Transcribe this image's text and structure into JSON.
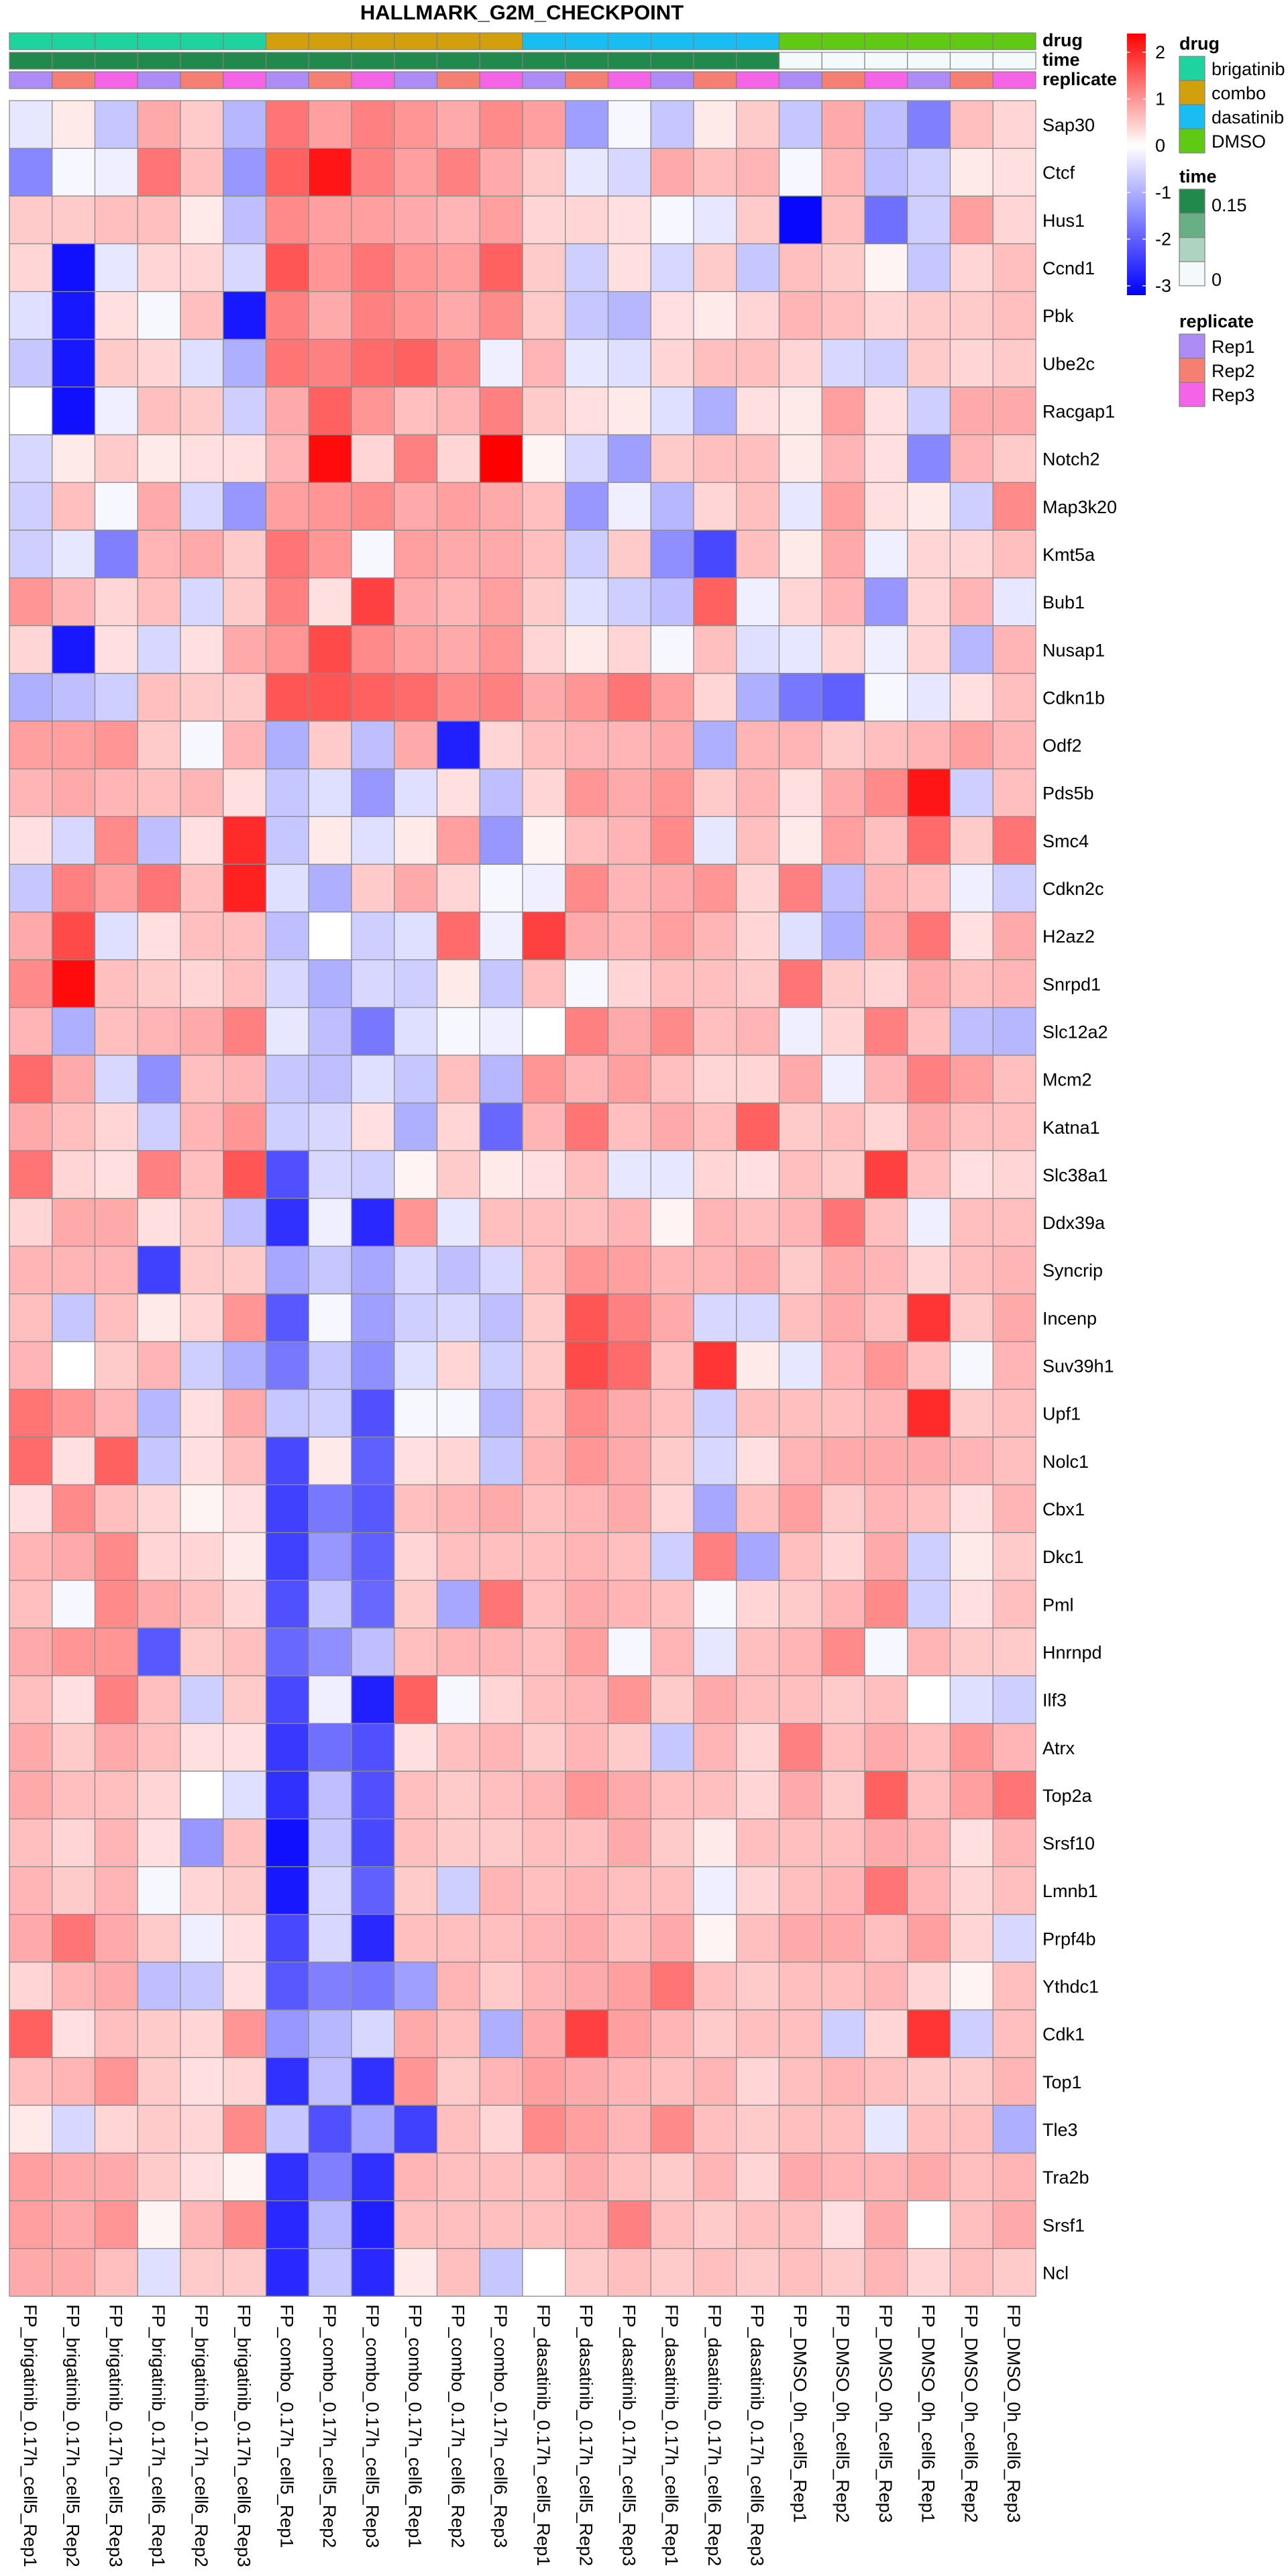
{
  "chart_data": {
    "type": "heatmap",
    "title": "HALLMARK_G2M_CHECKPOINT",
    "columns": [
      "FP_brigatinib_0.17h_cell5_Rep1",
      "FP_brigatinib_0.17h_cell5_Rep2",
      "FP_brigatinib_0.17h_cell5_Rep3",
      "FP_brigatinib_0.17h_cell6_Rep1",
      "FP_brigatinib_0.17h_cell6_Rep2",
      "FP_brigatinib_0.17h_cell6_Rep3",
      "FP_combo_0.17h_cell5_Rep1",
      "FP_combo_0.17h_cell5_Rep2",
      "FP_combo_0.17h_cell5_Rep3",
      "FP_combo_0.17h_cell6_Rep1",
      "FP_combo_0.17h_cell6_Rep2",
      "FP_combo_0.17h_cell6_Rep3",
      "FP_dasatinib_0.17h_cell5_Rep1",
      "FP_dasatinib_0.17h_cell5_Rep2",
      "FP_dasatinib_0.17h_cell5_Rep3",
      "FP_dasatinib_0.17h_cell6_Rep1",
      "FP_dasatinib_0.17h_cell6_Rep2",
      "FP_dasatinib_0.17h_cell6_Rep3",
      "FP_DMSO_0h_cell5_Rep1",
      "FP_DMSO_0h_cell5_Rep2",
      "FP_DMSO_0h_cell5_Rep3",
      "FP_DMSO_0h_cell6_Rep1",
      "FP_DMSO_0h_cell6_Rep2",
      "FP_DMSO_0h_cell6_Rep3"
    ],
    "rows": [
      "Sap30",
      "Ctcf",
      "Hus1",
      "Ccnd1",
      "Pbk",
      "Ube2c",
      "Racgap1",
      "Notch2",
      "Map3k20",
      "Kmt5a",
      "Bub1",
      "Nusap1",
      "Cdkn1b",
      "Odf2",
      "Pds5b",
      "Smc4",
      "Cdkn2c",
      "H2az2",
      "Snrpd1",
      "Slc12a2",
      "Mcm2",
      "Katna1",
      "Slc38a1",
      "Ddx39a",
      "Syncrip",
      "Incenp",
      "Suv39h1",
      "Upf1",
      "Nolc1",
      "Cbx1",
      "Dkc1",
      "Pml",
      "Hnrnpd",
      "Ilf3",
      "Atrx",
      "Top2a",
      "Srsf10",
      "Lmnb1",
      "Prpf4b",
      "Ythdc1",
      "Cdk1",
      "Top1",
      "Tle3",
      "Tra2b",
      "Srsf1",
      "Ncl"
    ],
    "values": [
      [
        -0.3,
        0.2,
        -0.7,
        0.8,
        0.5,
        -0.9,
        1.3,
        0.9,
        1.2,
        1.0,
        0.8,
        1.1,
        0.9,
        -1.2,
        -0.1,
        -0.7,
        0.2,
        0.5,
        -0.7,
        0.8,
        -0.8,
        -1.6,
        0.6,
        0.4
      ],
      [
        -1.5,
        -0.1,
        -0.2,
        1.3,
        0.6,
        -1.3,
        1.5,
        2.2,
        1.2,
        0.9,
        1.2,
        0.8,
        0.5,
        -0.3,
        -0.5,
        0.8,
        0.6,
        0.7,
        -0.1,
        0.7,
        -0.8,
        -0.6,
        0.2,
        0.3
      ],
      [
        0.5,
        0.5,
        0.6,
        0.6,
        0.2,
        -0.8,
        1.1,
        0.9,
        0.9,
        0.8,
        0.7,
        0.9,
        0.4,
        0.4,
        0.3,
        -0.1,
        -0.3,
        0.5,
        -3.1,
        0.6,
        -1.8,
        -0.6,
        0.9,
        0.4
      ],
      [
        0.4,
        -3.0,
        -0.3,
        0.4,
        0.4,
        -0.5,
        1.6,
        1.0,
        1.3,
        1.0,
        0.9,
        1.5,
        0.5,
        -0.6,
        0.3,
        -0.5,
        0.5,
        -0.7,
        0.6,
        0.5,
        0.1,
        -0.7,
        0.4,
        0.6
      ],
      [
        -0.4,
        -2.9,
        0.3,
        -0.1,
        0.6,
        -2.9,
        1.2,
        0.8,
        1.2,
        1.0,
        0.8,
        1.1,
        0.5,
        -0.7,
        -0.9,
        0.3,
        0.2,
        0.4,
        0.7,
        0.6,
        0.4,
        0.5,
        0.5,
        0.6
      ],
      [
        -0.7,
        -2.9,
        0.5,
        0.4,
        -0.4,
        -1.0,
        1.3,
        1.2,
        1.4,
        1.5,
        1.1,
        -0.2,
        0.7,
        -0.3,
        -0.4,
        0.4,
        0.6,
        0.6,
        0.4,
        -0.5,
        -0.6,
        0.5,
        0.4,
        0.5
      ],
      [
        0.0,
        -3.0,
        -0.2,
        0.6,
        0.5,
        -0.6,
        0.8,
        1.5,
        1.0,
        0.6,
        0.7,
        1.2,
        0.5,
        0.3,
        0.2,
        -0.4,
        -1.0,
        0.3,
        0.2,
        0.9,
        0.3,
        -0.6,
        0.8,
        0.8
      ],
      [
        -0.5,
        0.2,
        0.5,
        0.2,
        0.3,
        0.3,
        0.7,
        2.3,
        0.4,
        1.2,
        0.4,
        2.4,
        0.1,
        -0.5,
        -1.2,
        0.5,
        0.6,
        0.6,
        0.2,
        0.7,
        0.3,
        -1.5,
        0.7,
        0.5
      ],
      [
        -0.6,
        0.6,
        -0.1,
        0.8,
        -0.5,
        -1.3,
        0.9,
        1.0,
        1.1,
        0.8,
        0.9,
        0.8,
        0.6,
        -1.3,
        -0.2,
        -0.9,
        0.4,
        0.6,
        -0.3,
        0.9,
        0.3,
        0.2,
        -0.6,
        1.1
      ],
      [
        -0.6,
        -0.3,
        -1.6,
        0.7,
        0.8,
        0.5,
        1.3,
        1.0,
        -0.1,
        0.9,
        0.8,
        0.8,
        0.6,
        -0.6,
        0.5,
        -1.4,
        -2.3,
        0.6,
        0.2,
        0.8,
        -0.2,
        0.4,
        0.4,
        0.6
      ],
      [
        1.0,
        0.7,
        0.4,
        0.6,
        -0.5,
        0.5,
        1.2,
        0.3,
        1.8,
        0.8,
        0.7,
        0.9,
        0.5,
        -0.4,
        -0.6,
        -0.8,
        1.5,
        -0.2,
        0.4,
        0.7,
        -1.3,
        0.4,
        0.7,
        -0.3
      ],
      [
        0.4,
        -2.9,
        0.3,
        -0.5,
        0.3,
        0.8,
        1.0,
        1.7,
        1.1,
        0.9,
        0.8,
        1.0,
        0.4,
        0.2,
        0.4,
        -0.1,
        0.6,
        -0.4,
        -0.3,
        0.4,
        -0.2,
        0.4,
        -0.9,
        0.7
      ],
      [
        -1.0,
        -0.8,
        -0.6,
        0.6,
        0.5,
        0.5,
        1.6,
        1.6,
        1.5,
        1.4,
        1.1,
        1.2,
        0.8,
        1.0,
        1.3,
        0.9,
        0.4,
        -1.0,
        -1.7,
        -2.0,
        -0.1,
        -0.3,
        0.3,
        0.6
      ],
      [
        0.9,
        0.9,
        1.0,
        0.5,
        -0.1,
        0.7,
        -1.0,
        0.5,
        -0.8,
        0.8,
        -2.8,
        0.4,
        0.6,
        0.7,
        0.7,
        0.8,
        -1.0,
        0.7,
        0.7,
        0.5,
        0.6,
        0.7,
        0.9,
        0.7
      ],
      [
        0.7,
        0.8,
        0.7,
        0.6,
        0.7,
        0.3,
        -0.7,
        -0.4,
        -1.3,
        -0.4,
        0.3,
        -0.8,
        0.4,
        1.0,
        0.8,
        1.0,
        0.5,
        0.7,
        0.3,
        0.8,
        1.1,
        2.2,
        -0.6,
        0.6
      ],
      [
        0.3,
        -0.5,
        1.1,
        -0.8,
        0.3,
        2.0,
        -0.7,
        0.2,
        -0.4,
        0.2,
        0.9,
        -1.3,
        0.1,
        0.6,
        0.7,
        1.1,
        -0.3,
        0.6,
        0.2,
        0.9,
        0.6,
        1.4,
        0.5,
        1.3
      ],
      [
        -0.7,
        1.2,
        0.9,
        1.3,
        0.6,
        2.1,
        -0.4,
        -1.0,
        0.5,
        0.8,
        0.4,
        -0.1,
        -0.2,
        1.1,
        0.7,
        0.8,
        1.0,
        0.4,
        1.2,
        -0.8,
        0.7,
        0.6,
        -0.2,
        -0.6
      ],
      [
        0.8,
        1.7,
        -0.4,
        0.3,
        0.6,
        0.6,
        -0.8,
        0.0,
        -0.6,
        -0.4,
        1.4,
        -0.2,
        1.8,
        0.8,
        0.7,
        0.9,
        0.7,
        0.4,
        -0.4,
        -1.0,
        0.8,
        1.3,
        0.3,
        0.8
      ],
      [
        1.1,
        2.3,
        0.6,
        0.5,
        0.4,
        0.6,
        -0.5,
        -1.0,
        -0.5,
        -0.6,
        0.2,
        -0.7,
        0.6,
        -0.1,
        0.4,
        0.6,
        0.6,
        0.5,
        1.3,
        0.5,
        0.4,
        0.8,
        0.6,
        0.7
      ],
      [
        0.7,
        -1.0,
        0.6,
        0.7,
        0.8,
        1.2,
        -0.3,
        -0.8,
        -1.7,
        -0.4,
        -0.1,
        -0.2,
        0.0,
        1.2,
        0.8,
        1.1,
        0.6,
        0.7,
        -0.2,
        0.4,
        1.2,
        0.6,
        -0.8,
        -0.9
      ],
      [
        1.4,
        0.8,
        -0.5,
        -1.4,
        0.6,
        0.7,
        -0.7,
        -0.8,
        -0.4,
        -0.7,
        0.6,
        -0.9,
        1.0,
        0.7,
        0.9,
        0.6,
        0.4,
        0.4,
        0.8,
        -0.2,
        0.7,
        1.2,
        0.9,
        0.6
      ],
      [
        0.8,
        0.6,
        0.4,
        -0.6,
        0.7,
        1.0,
        -0.6,
        -0.5,
        0.3,
        -1.0,
        0.4,
        -1.9,
        0.7,
        1.3,
        0.6,
        0.8,
        0.6,
        1.5,
        0.5,
        0.6,
        0.4,
        0.8,
        0.6,
        0.6
      ],
      [
        1.3,
        0.4,
        0.3,
        1.2,
        0.6,
        1.6,
        -2.2,
        -0.5,
        -0.6,
        0.1,
        0.5,
        0.2,
        0.3,
        0.6,
        -0.3,
        -0.3,
        0.4,
        0.3,
        0.6,
        0.5,
        1.8,
        0.6,
        0.3,
        0.4
      ],
      [
        0.4,
        0.8,
        0.8,
        0.3,
        0.5,
        -0.8,
        -2.6,
        -0.2,
        -2.7,
        1.0,
        -0.3,
        0.6,
        0.6,
        0.6,
        0.7,
        0.1,
        0.7,
        0.6,
        0.7,
        1.3,
        0.6,
        -0.2,
        0.6,
        0.6
      ],
      [
        0.7,
        0.7,
        0.7,
        -2.4,
        0.5,
        0.5,
        -1.1,
        -0.7,
        -1.1,
        -0.5,
        -0.8,
        -0.5,
        0.6,
        1.0,
        0.9,
        0.7,
        0.7,
        0.8,
        0.5,
        0.8,
        0.7,
        0.4,
        0.6,
        0.7
      ],
      [
        0.6,
        -0.7,
        0.6,
        0.2,
        0.4,
        1.0,
        -2.1,
        -0.1,
        -1.2,
        -0.6,
        -0.5,
        -0.8,
        0.5,
        1.6,
        1.2,
        0.8,
        -0.5,
        -0.5,
        0.6,
        0.8,
        0.6,
        1.9,
        0.5,
        0.8
      ],
      [
        0.7,
        0.0,
        0.5,
        0.7,
        -0.6,
        -1.0,
        -1.7,
        -0.7,
        -1.4,
        -0.4,
        0.4,
        -0.6,
        0.5,
        1.7,
        1.4,
        0.6,
        1.9,
        0.2,
        -0.3,
        0.7,
        1.0,
        0.6,
        -0.1,
        0.7
      ],
      [
        1.3,
        1.0,
        0.7,
        -0.9,
        0.3,
        0.8,
        -0.7,
        -0.6,
        -2.2,
        -0.1,
        -0.1,
        -0.9,
        0.6,
        1.1,
        0.8,
        0.6,
        -0.6,
        0.6,
        0.6,
        0.6,
        0.7,
        2.0,
        0.5,
        0.6
      ],
      [
        1.4,
        0.3,
        1.5,
        -0.7,
        0.3,
        0.6,
        -2.3,
        0.2,
        -2.0,
        0.3,
        0.4,
        -0.7,
        0.7,
        1.0,
        0.8,
        0.5,
        -0.5,
        0.3,
        0.7,
        0.8,
        0.8,
        0.8,
        0.7,
        0.6
      ],
      [
        0.3,
        1.1,
        0.6,
        0.4,
        0.1,
        0.3,
        -2.4,
        -1.7,
        -2.1,
        0.6,
        0.7,
        0.8,
        0.6,
        0.7,
        0.8,
        0.4,
        -1.1,
        0.6,
        0.9,
        0.5,
        0.7,
        0.6,
        0.3,
        0.7
      ],
      [
        0.7,
        0.8,
        1.1,
        0.4,
        0.4,
        0.2,
        -2.4,
        -1.3,
        -2.0,
        0.4,
        0.6,
        0.6,
        0.6,
        0.7,
        0.6,
        -0.6,
        1.2,
        -1.1,
        0.6,
        0.4,
        0.8,
        -0.6,
        0.2,
        0.5
      ],
      [
        0.6,
        -0.1,
        1.1,
        0.8,
        0.6,
        0.4,
        -2.2,
        -0.7,
        -1.9,
        0.5,
        -1.1,
        1.3,
        0.6,
        0.8,
        0.7,
        0.6,
        -0.1,
        0.4,
        0.5,
        0.7,
        1.1,
        -0.6,
        0.3,
        0.6
      ],
      [
        0.8,
        1.0,
        1.0,
        -2.1,
        0.5,
        0.6,
        -1.9,
        -1.4,
        -0.8,
        0.6,
        0.7,
        0.7,
        0.6,
        0.9,
        -0.1,
        0.7,
        -0.3,
        0.6,
        0.7,
        1.1,
        -0.1,
        0.7,
        0.5,
        0.5
      ],
      [
        0.6,
        0.3,
        1.2,
        0.6,
        -0.6,
        0.5,
        -2.3,
        -0.2,
        -2.8,
        1.5,
        -0.1,
        0.4,
        0.6,
        0.7,
        1.0,
        0.5,
        0.8,
        0.6,
        0.6,
        0.5,
        0.6,
        0.0,
        -0.4,
        -0.6
      ],
      [
        0.8,
        0.5,
        0.8,
        0.6,
        0.3,
        0.3,
        -2.5,
        -1.8,
        -2.2,
        0.3,
        0.6,
        0.7,
        0.5,
        0.7,
        0.5,
        -0.7,
        0.7,
        0.4,
        1.2,
        0.6,
        0.8,
        0.6,
        1.0,
        0.7
      ],
      [
        0.8,
        0.6,
        0.6,
        0.4,
        0.0,
        -0.4,
        -2.6,
        -0.8,
        -2.2,
        0.6,
        0.5,
        0.6,
        0.7,
        1.0,
        0.8,
        0.6,
        0.6,
        0.4,
        0.8,
        0.5,
        1.5,
        0.6,
        0.9,
        1.3
      ],
      [
        0.6,
        0.4,
        0.7,
        0.3,
        -1.3,
        0.6,
        -3.0,
        -0.7,
        -2.3,
        0.6,
        0.5,
        0.5,
        0.6,
        0.6,
        0.8,
        0.5,
        0.2,
        0.6,
        0.6,
        0.6,
        0.8,
        0.7,
        0.3,
        0.7
      ],
      [
        0.7,
        0.5,
        0.7,
        -0.1,
        0.4,
        0.5,
        -2.9,
        -0.5,
        -2.0,
        0.5,
        -0.6,
        0.7,
        0.6,
        0.7,
        0.6,
        0.6,
        -0.2,
        0.4,
        0.6,
        0.7,
        1.3,
        0.7,
        0.4,
        0.6
      ],
      [
        0.8,
        1.3,
        0.8,
        0.5,
        -0.2,
        0.3,
        -2.3,
        -0.5,
        -2.7,
        0.6,
        0.6,
        0.6,
        0.7,
        0.8,
        0.6,
        0.8,
        0.1,
        0.6,
        0.8,
        0.8,
        0.6,
        0.9,
        0.4,
        -0.5
      ],
      [
        0.4,
        0.7,
        0.8,
        -0.8,
        -0.7,
        0.3,
        -2.1,
        -1.6,
        -1.7,
        -1.2,
        0.7,
        0.5,
        0.7,
        0.8,
        0.9,
        1.3,
        0.6,
        0.5,
        0.6,
        0.6,
        0.7,
        0.4,
        0.1,
        0.6
      ],
      [
        1.5,
        0.3,
        0.6,
        0.5,
        0.4,
        1.0,
        -1.3,
        -0.9,
        -0.5,
        0.8,
        0.6,
        -1.0,
        0.8,
        1.8,
        0.9,
        0.7,
        0.5,
        0.6,
        0.6,
        -0.6,
        0.4,
        1.9,
        -0.6,
        0.6
      ],
      [
        0.6,
        0.7,
        1.0,
        0.5,
        0.3,
        0.4,
        -2.6,
        -0.8,
        -2.6,
        1.0,
        0.5,
        0.7,
        0.9,
        0.8,
        0.7,
        0.6,
        0.7,
        0.4,
        0.6,
        0.7,
        0.6,
        0.5,
        0.5,
        0.7
      ],
      [
        0.2,
        -0.5,
        0.4,
        0.5,
        0.4,
        1.1,
        -0.7,
        -2.2,
        -1.1,
        -2.4,
        0.6,
        0.4,
        1.1,
        0.9,
        0.7,
        1.1,
        0.6,
        0.5,
        0.6,
        0.6,
        -0.3,
        0.6,
        0.6,
        -1.0
      ],
      [
        0.9,
        0.8,
        0.8,
        0.5,
        0.3,
        0.1,
        -2.6,
        -1.6,
        -2.6,
        0.7,
        0.6,
        0.6,
        0.6,
        0.8,
        0.6,
        0.5,
        0.7,
        0.4,
        0.8,
        0.7,
        0.7,
        0.8,
        0.6,
        0.7
      ],
      [
        0.9,
        0.8,
        1.0,
        0.1,
        0.7,
        1.1,
        -2.7,
        -0.9,
        -2.8,
        0.6,
        0.6,
        0.6,
        0.6,
        0.7,
        1.2,
        0.6,
        0.5,
        0.6,
        0.6,
        0.3,
        0.8,
        0.0,
        0.6,
        0.8
      ],
      [
        0.8,
        0.8,
        0.6,
        -0.4,
        0.5,
        0.5,
        -2.7,
        -0.7,
        -2.7,
        0.2,
        0.6,
        -0.7,
        0.0,
        0.5,
        0.6,
        0.5,
        0.6,
        0.5,
        0.6,
        0.5,
        0.7,
        0.4,
        0.6,
        0.5
      ]
    ],
    "scale": {
      "min": -3.2,
      "max": 2.4,
      "low_color": "#0000FF",
      "mid_color": "#FFFFFF",
      "high_color": "#FF0000",
      "ticks": [
        "2",
        "1",
        "0",
        "-1",
        "-2",
        "-3"
      ]
    },
    "annotations": [
      {
        "name": "drug",
        "values": [
          "brigatinib",
          "brigatinib",
          "brigatinib",
          "brigatinib",
          "brigatinib",
          "brigatinib",
          "combo",
          "combo",
          "combo",
          "combo",
          "combo",
          "combo",
          "dasatinib",
          "dasatinib",
          "dasatinib",
          "dasatinib",
          "dasatinib",
          "dasatinib",
          "DMSO",
          "DMSO",
          "DMSO",
          "DMSO",
          "DMSO",
          "DMSO"
        ],
        "legend_type": "categorical",
        "levels": [
          "brigatinib",
          "combo",
          "dasatinib",
          "DMSO"
        ],
        "colors": [
          "#1FD39E",
          "#D2A00D",
          "#1ABDF2",
          "#5FC913"
        ]
      },
      {
        "name": "time",
        "values": [
          0.17,
          0.17,
          0.17,
          0.17,
          0.17,
          0.17,
          0.17,
          0.17,
          0.17,
          0.17,
          0.17,
          0.17,
          0.17,
          0.17,
          0.17,
          0.17,
          0.17,
          0.17,
          0,
          0,
          0,
          0,
          0,
          0
        ],
        "legend_type": "continuous",
        "min": 0,
        "max": 0.17,
        "low_color": "#F4FAFB",
        "high_color": "#22894C",
        "ticks": [
          "0.15",
          "0"
        ]
      },
      {
        "name": "replicate",
        "values": [
          "Rep1",
          "Rep2",
          "Rep3",
          "Rep1",
          "Rep2",
          "Rep3",
          "Rep1",
          "Rep2",
          "Rep3",
          "Rep1",
          "Rep2",
          "Rep3",
          "Rep1",
          "Rep2",
          "Rep3",
          "Rep1",
          "Rep2",
          "Rep3",
          "Rep1",
          "Rep2",
          "Rep3",
          "Rep1",
          "Rep2",
          "Rep3"
        ],
        "legend_type": "categorical",
        "levels": [
          "Rep1",
          "Rep2",
          "Rep3"
        ],
        "colors": [
          "#AE8CF6",
          "#F57F72",
          "#F564E6"
        ]
      }
    ]
  }
}
